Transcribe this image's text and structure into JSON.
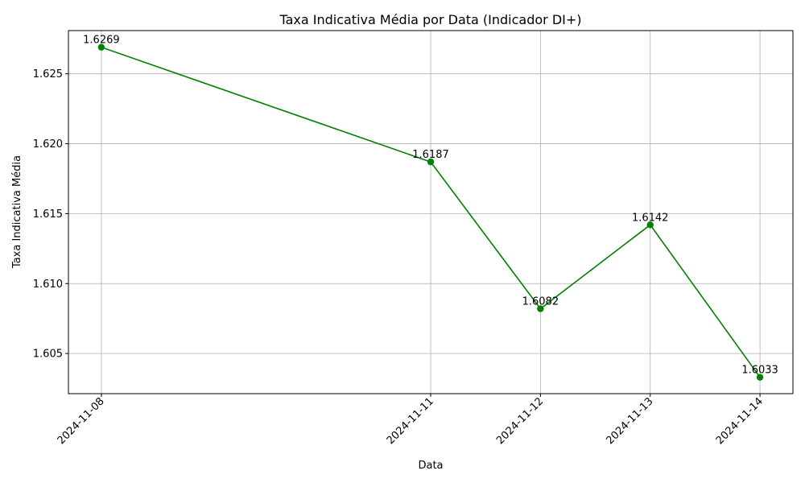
{
  "chart_data": {
    "type": "line",
    "title": "Taxa Indicativa Média por Data (Indicador DI+)",
    "xlabel": "Data",
    "ylabel": "Taxa Indicativa Média",
    "x": [
      "2024-11-08",
      "2024-11-11",
      "2024-11-12",
      "2024-11-13",
      "2024-11-14"
    ],
    "values": [
      1.6269,
      1.6187,
      1.6082,
      1.6142,
      1.6033
    ],
    "data_labels": [
      "1.6269",
      "1.6187",
      "1.6082",
      "1.6142",
      "1.6033"
    ],
    "x_ticks": [
      "2024-11-08",
      "2024-11-11",
      "2024-11-12",
      "2024-11-13",
      "2024-11-14"
    ],
    "y_ticks": [
      1.605,
      1.61,
      1.615,
      1.62,
      1.625
    ],
    "y_tick_labels": [
      "1.605",
      "1.610",
      "1.615",
      "1.620",
      "1.625"
    ],
    "xlim": [
      "2024-11-07.7",
      "2024-11-14.3"
    ],
    "ylim": [
      1.60213,
      1.62809
    ],
    "grid": true,
    "legend": "none",
    "line_color": "#008000",
    "marker": "circle"
  }
}
